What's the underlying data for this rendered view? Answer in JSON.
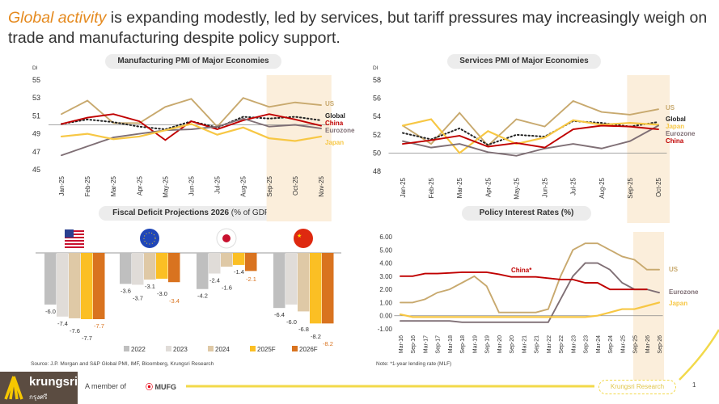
{
  "headline": {
    "highlight": "Global activity",
    "rest": " is expanding modestly, led by services, but tariff pressures may increasingly weigh on trade and manufacturing despite policy support."
  },
  "colors": {
    "US": "#c8a96e",
    "China": "#c00000",
    "Global": "#222222",
    "Eurozone": "#7f6f75",
    "Japan": "#f7c744",
    "shade": "#fbeedb",
    "bar2022": "#bfbfbf",
    "bar2023": "#e0dcd8",
    "bar2024": "#dfc9a6",
    "bar2025F": "#fbbf24",
    "bar2026F": "#d9731f"
  },
  "chart_data": [
    {
      "type": "line",
      "title": "Manufacturing PMI of Major Economies",
      "ylabel": "DI",
      "ylim": [
        45,
        55
      ],
      "yticks": [
        "45",
        "47",
        "49",
        "51",
        "53",
        "55"
      ],
      "categories": [
        "Jan-25",
        "Feb-25",
        "Mar-25",
        "Apr-25",
        "May-25",
        "Jun-25",
        "Jul-25",
        "Aug-25",
        "Sep-25",
        "Oct-25",
        "Nov-25"
      ],
      "shaded_from": "Sep-25",
      "reference_line": 50,
      "series": [
        {
          "name": "US",
          "values": [
            51.2,
            52.7,
            50.2,
            50.2,
            52.0,
            52.9,
            49.8,
            53.0,
            52.0,
            52.5,
            52.2
          ]
        },
        {
          "name": "Global",
          "values": [
            50.1,
            50.6,
            50.3,
            49.8,
            49.5,
            50.4,
            49.7,
            50.9,
            50.7,
            50.9,
            50.5
          ],
          "style": "dotted"
        },
        {
          "name": "China",
          "values": [
            50.1,
            50.8,
            51.2,
            50.4,
            48.3,
            50.4,
            49.5,
            50.5,
            51.2,
            50.6,
            49.9
          ]
        },
        {
          "name": "Eurozone",
          "values": [
            46.6,
            47.6,
            48.6,
            49.0,
            49.4,
            49.5,
            49.8,
            50.7,
            49.8,
            50.0,
            49.6
          ]
        },
        {
          "name": "Japan",
          "values": [
            48.7,
            49.0,
            48.4,
            48.7,
            49.4,
            50.1,
            48.9,
            49.7,
            48.5,
            48.2,
            48.7
          ]
        }
      ]
    },
    {
      "type": "line",
      "title": "Services PMI of Major Economies",
      "ylabel": "DI",
      "ylim": [
        48,
        58
      ],
      "yticks": [
        "48",
        "50",
        "52",
        "54",
        "56",
        "58"
      ],
      "categories": [
        "Jan-25",
        "Feb-25",
        "Mar-25",
        "Apr-25",
        "May-25",
        "Jun-25",
        "Jul-25",
        "Aug-25",
        "Sep-25",
        "Oct-25"
      ],
      "shaded_from": "Sep-25",
      "reference_line": 50,
      "series": [
        {
          "name": "US",
          "values": [
            53.0,
            51.0,
            54.4,
            50.8,
            53.7,
            52.9,
            55.7,
            54.5,
            54.2,
            54.8
          ]
        },
        {
          "name": "Global",
          "values": [
            52.2,
            51.5,
            52.7,
            50.9,
            52.0,
            51.8,
            53.5,
            53.3,
            52.9,
            53.4
          ],
          "style": "dotted"
        },
        {
          "name": "Japan",
          "values": [
            53.0,
            53.7,
            50.0,
            52.4,
            51.0,
            51.7,
            53.6,
            53.1,
            53.3,
            53.1
          ]
        },
        {
          "name": "Eurozone",
          "values": [
            51.3,
            50.6,
            51.0,
            50.1,
            49.7,
            50.5,
            51.0,
            50.5,
            51.3,
            53.0
          ]
        },
        {
          "name": "China",
          "values": [
            51.0,
            51.4,
            51.9,
            50.7,
            51.1,
            50.6,
            52.6,
            53.0,
            52.9,
            52.6
          ]
        }
      ]
    },
    {
      "type": "bar",
      "title": "Fiscal Deficit Projections 2026",
      "title_unit": "(% of GDP)",
      "categories": [
        "US",
        "Eurozone",
        "Japan",
        "China"
      ],
      "series": [
        {
          "name": "2022",
          "values": [
            -6.0,
            -3.6,
            -4.2,
            -6.4
          ],
          "labels": [
            "-6.0",
            "-3.6",
            "-4.2",
            "-6.4"
          ]
        },
        {
          "name": "2023",
          "values": [
            -7.4,
            -3.7,
            -2.4,
            -6.0
          ],
          "labels": [
            "-7.4",
            "-3.7",
            "-2.4",
            "-6.0"
          ]
        },
        {
          "name": "2024",
          "values": [
            -7.6,
            -3.1,
            -1.6,
            -6.8
          ],
          "labels": [
            "-7.6",
            "-3.1",
            "-1.6",
            "-6.8"
          ]
        },
        {
          "name": "2025F",
          "values": [
            -7.7,
            -3.0,
            -1.4,
            -8.2
          ],
          "labels": [
            "-7.7",
            "-3.0",
            "-1.4",
            "-8.2"
          ]
        },
        {
          "name": "2026F",
          "values": [
            -7.7,
            -3.4,
            -2.1,
            -8.2
          ],
          "labels": [
            "-7.7",
            "-3.4",
            "-2.1",
            "-8.2"
          ]
        }
      ]
    },
    {
      "type": "line",
      "title": "Policy Interest Rates (%)",
      "ylim": [
        -1,
        6
      ],
      "yticks": [
        "-1.00",
        "0.00",
        "1.00",
        "2.00",
        "3.00",
        "4.00",
        "5.00",
        "6.00"
      ],
      "categories": [
        "Mar-16",
        "Sep-16",
        "Mar-17",
        "Sep-17",
        "Mar-18",
        "Sep-18",
        "Mar-19",
        "Sep-19",
        "Mar-20",
        "Sep-20",
        "Mar-21",
        "Sep-21",
        "Mar-22",
        "Sep-22",
        "Mar-23",
        "Sep-23",
        "Mar-24",
        "Sep-24",
        "Mar-25",
        "Sep-25",
        "Mar-26",
        "Sep-26"
      ],
      "shaded_from": "Sep-25",
      "reference_line": 0,
      "series": [
        {
          "name": "US",
          "values": [
            1.0,
            1.0,
            1.25,
            1.75,
            2.0,
            2.5,
            3.0,
            2.25,
            0.25,
            0.25,
            0.25,
            0.25,
            0.5,
            3.0,
            5.0,
            5.5,
            5.5,
            5.0,
            4.5,
            4.25,
            3.5,
            3.5
          ]
        },
        {
          "name": "Eurozone",
          "values": [
            -0.4,
            -0.4,
            -0.4,
            -0.4,
            -0.4,
            -0.5,
            -0.5,
            -0.5,
            -0.5,
            -0.5,
            -0.5,
            -0.5,
            -0.5,
            1.25,
            3.0,
            4.0,
            4.0,
            3.5,
            2.5,
            2.0,
            2.0,
            1.75
          ]
        },
        {
          "name": "China*",
          "values": [
            3.0,
            3.0,
            3.2,
            3.2,
            3.25,
            3.3,
            3.3,
            3.3,
            3.15,
            2.95,
            2.95,
            2.95,
            2.85,
            2.75,
            2.75,
            2.5,
            2.5,
            2.0,
            2.0,
            2.0,
            2.0,
            null
          ]
        },
        {
          "name": "Japan",
          "values": [
            0.1,
            -0.1,
            -0.1,
            -0.1,
            -0.1,
            -0.1,
            -0.1,
            -0.1,
            -0.1,
            -0.1,
            -0.1,
            -0.1,
            -0.1,
            -0.1,
            -0.1,
            -0.1,
            0.0,
            0.25,
            0.5,
            0.5,
            0.75,
            1.0
          ]
        }
      ]
    }
  ],
  "source": "Source: J.P. Morgan and S&P Global PMI, IMF, Bloomberg, Krungsri Research",
  "note": "Note: *1-year lending rate (MLF)",
  "footer": {
    "brand": "krungsri",
    "brand_thai": "กรุงศรี",
    "member": "A member of",
    "mufg": "MUFG",
    "pill": "Krungsri Research",
    "page": "1"
  }
}
